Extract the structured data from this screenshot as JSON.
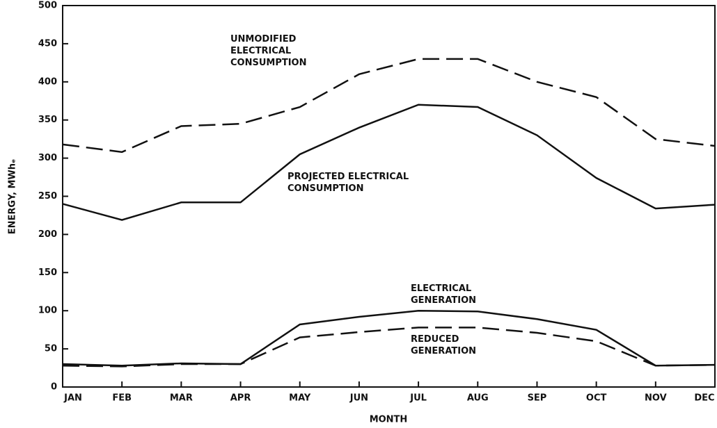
{
  "chart_data": {
    "type": "line",
    "x_label": "MONTH",
    "y_label": "ENERGY, MWhₑ",
    "categories": [
      "JAN",
      "FEB",
      "MAR",
      "APR",
      "MAY",
      "JUN",
      "JUL",
      "AUG",
      "SEP",
      "OCT",
      "NOV",
      "DEC"
    ],
    "series": [
      {
        "name": "UNMODIFIED ELECTRICAL CONSUMPTION",
        "color": "#111111",
        "style": "dashed",
        "values": [
          318,
          308,
          342,
          345,
          367,
          410,
          430,
          430,
          400,
          380,
          325,
          316
        ]
      },
      {
        "name": "PROJECTED ELECTRICAL CONSUMPTION",
        "color": "#111111",
        "style": "solid",
        "values": [
          240,
          219,
          242,
          242,
          305,
          340,
          370,
          367,
          330,
          274,
          234,
          239
        ]
      },
      {
        "name": "ELECTRICAL GENERATION",
        "color": "#111111",
        "style": "solid",
        "values": [
          30,
          28,
          31,
          30,
          82,
          92,
          100,
          99,
          89,
          75,
          28,
          29
        ]
      },
      {
        "name": "REDUCED GENERATION",
        "color": "#111111",
        "style": "dashed",
        "values": [
          28,
          27,
          30,
          30,
          65,
          72,
          78,
          78,
          71,
          60,
          28,
          29
        ]
      }
    ],
    "ylim": [
      0,
      500
    ],
    "yticks": [
      0,
      50,
      100,
      150,
      200,
      250,
      300,
      350,
      400,
      450,
      500
    ],
    "grid": false
  }
}
